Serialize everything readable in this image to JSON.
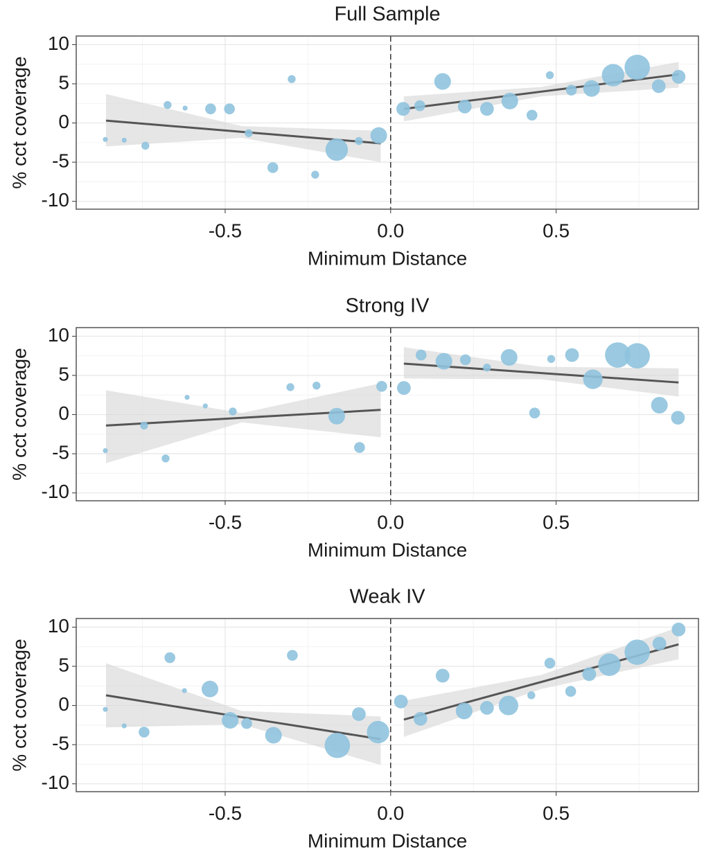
{
  "chart_data": [
    {
      "type": "scatter",
      "title": "Full Sample",
      "x_label": "Minimum Distance",
      "y_label": "% cct coverage",
      "xlim": [
        -0.95,
        0.93
      ],
      "ylim": [
        -11,
        11.1
      ],
      "xticks": [
        -0.5,
        {
          "value": 0,
          "label": "0.0"
        },
        0.5
      ],
      "yticks": [
        -10,
        -5,
        0,
        5,
        10
      ],
      "grid": true,
      "minor_grid": true,
      "vline": 0,
      "point_color": "#8fc3de",
      "line_color": "#555555",
      "band_color": "#d6d6d6",
      "points": {
        "x": [
          -0.862,
          -0.805,
          -0.741,
          -0.674,
          -0.621,
          -0.544,
          -0.487,
          -0.429,
          -0.356,
          -0.299,
          -0.228,
          -0.163,
          -0.096,
          -0.036,
          0.038,
          0.088,
          0.157,
          0.224,
          0.291,
          0.36,
          0.427,
          0.481,
          0.546,
          0.607,
          0.672,
          0.745,
          0.81,
          0.87
        ],
        "y": [
          -2.1,
          -2.2,
          -2.9,
          2.3,
          1.9,
          1.8,
          1.8,
          -1.3,
          -5.7,
          5.6,
          -6.6,
          -3.4,
          -2.3,
          -1.6,
          1.8,
          2.2,
          5.3,
          2.1,
          1.8,
          2.8,
          1.0,
          6.1,
          4.2,
          4.4,
          6.1,
          7.1,
          4.7,
          5.9
        ],
        "sizes": [
          1,
          1,
          2,
          2,
          1,
          3,
          3,
          2,
          3,
          2,
          2,
          7,
          2,
          5,
          4,
          3,
          5,
          4,
          4,
          5,
          3,
          2,
          3,
          5,
          7,
          8,
          4,
          4
        ]
      },
      "fits": [
        {
          "x": [
            -0.86,
            -0.45,
            -0.03
          ],
          "y": [
            0.3,
            -1.13,
            -2.6
          ],
          "lower": [
            -3.0,
            -1.9,
            -5.0
          ],
          "upper": [
            3.7,
            -0.4,
            -1.0
          ]
        },
        {
          "x": [
            0.04,
            0.455,
            0.87
          ],
          "y": [
            1.8,
            4.0,
            6.2
          ],
          "lower": [
            0.2,
            3.4,
            4.5
          ],
          "upper": [
            3.4,
            4.6,
            7.8
          ]
        }
      ]
    },
    {
      "type": "scatter",
      "title": "Strong IV",
      "x_label": "Minimum Distance",
      "y_label": "% cct coverage",
      "xlim": [
        -0.95,
        0.93
      ],
      "ylim": [
        -11,
        11.1
      ],
      "xticks": [
        -0.5,
        {
          "value": 0,
          "label": "0.0"
        },
        0.5
      ],
      "yticks": [
        -10,
        -5,
        0,
        5,
        10
      ],
      "grid": true,
      "minor_grid": true,
      "vline": 0,
      "point_color": "#8fc3de",
      "line_color": "#555555",
      "band_color": "#d6d6d6",
      "points": {
        "x": [
          -0.862,
          -0.745,
          -0.68,
          -0.615,
          -0.56,
          -0.477,
          -0.303,
          -0.224,
          -0.163,
          -0.094,
          -0.027,
          0.04,
          0.092,
          0.161,
          0.226,
          0.291,
          0.358,
          0.435,
          0.485,
          0.548,
          0.611,
          0.686,
          0.745,
          0.812,
          0.868
        ],
        "y": [
          -4.6,
          -1.4,
          -5.6,
          2.2,
          1.1,
          0.4,
          3.5,
          3.7,
          -0.2,
          -4.2,
          3.6,
          3.4,
          7.6,
          6.8,
          7.0,
          6.0,
          7.3,
          0.2,
          7.1,
          7.6,
          4.5,
          7.6,
          7.5,
          1.2,
          -0.4
        ],
        "sizes": [
          1,
          2,
          2,
          1,
          1,
          2,
          2,
          2,
          5,
          3,
          3,
          4,
          3,
          5,
          3,
          2,
          5,
          3,
          2,
          4,
          6,
          8,
          8,
          5,
          4
        ]
      },
      "fits": [
        {
          "x": [
            -0.86,
            -0.45,
            -0.03
          ],
          "y": [
            -1.4,
            -0.41,
            0.6
          ],
          "lower": [
            -6.2,
            -1.0,
            -2.9
          ],
          "upper": [
            3.1,
            0.2,
            4.0
          ]
        },
        {
          "x": [
            0.04,
            0.455,
            0.87
          ],
          "y": [
            6.5,
            5.3,
            4.1
          ],
          "lower": [
            4.6,
            4.5,
            2.3
          ],
          "upper": [
            8.6,
            6.1,
            5.9
          ]
        }
      ]
    },
    {
      "type": "scatter",
      "title": "Weak IV",
      "x_label": "Minimum Distance",
      "y_label": "% cct coverage",
      "xlim": [
        -0.95,
        0.93
      ],
      "ylim": [
        -11,
        11.1
      ],
      "xticks": [
        -0.5,
        {
          "value": 0,
          "label": "0.0"
        },
        0.5
      ],
      "yticks": [
        -10,
        -5,
        0,
        5,
        10
      ],
      "grid": true,
      "minor_grid": true,
      "vline": 0,
      "point_color": "#8fc3de",
      "line_color": "#555555",
      "band_color": "#d6d6d6",
      "points": {
        "x": [
          -0.862,
          -0.805,
          -0.745,
          -0.667,
          -0.623,
          -0.546,
          -0.485,
          -0.435,
          -0.354,
          -0.297,
          -0.161,
          -0.096,
          -0.038,
          0.031,
          0.09,
          0.157,
          0.222,
          0.291,
          0.356,
          0.425,
          0.481,
          0.544,
          0.6,
          0.661,
          0.745,
          0.812,
          0.87
        ],
        "y": [
          -0.5,
          -2.6,
          -3.4,
          6.1,
          1.9,
          2.1,
          -1.9,
          -2.3,
          -3.8,
          6.4,
          -5.1,
          -1.1,
          -3.4,
          0.5,
          -1.7,
          3.8,
          -0.7,
          -0.3,
          0.0,
          1.3,
          5.4,
          1.8,
          4.0,
          5.2,
          6.8,
          7.9,
          9.7
        ],
        "sizes": [
          1,
          1,
          3,
          3,
          1,
          5,
          5,
          3,
          5,
          3,
          8,
          4,
          7,
          4,
          4,
          4,
          5,
          4,
          6,
          2,
          3,
          3,
          4,
          7,
          8,
          4,
          4
        ]
      },
      "fits": [
        {
          "x": [
            -0.86,
            -0.45,
            -0.03
          ],
          "y": [
            1.3,
            -1.5,
            -4.3
          ],
          "lower": [
            -2.8,
            -2.4,
            -7.6
          ],
          "upper": [
            5.4,
            -0.7,
            -1.4
          ]
        },
        {
          "x": [
            0.04,
            0.455,
            0.87
          ],
          "y": [
            -1.8,
            3.0,
            7.8
          ],
          "lower": [
            -4.0,
            2.1,
            5.9
          ],
          "upper": [
            0.6,
            3.9,
            10.0
          ]
        }
      ]
    }
  ]
}
